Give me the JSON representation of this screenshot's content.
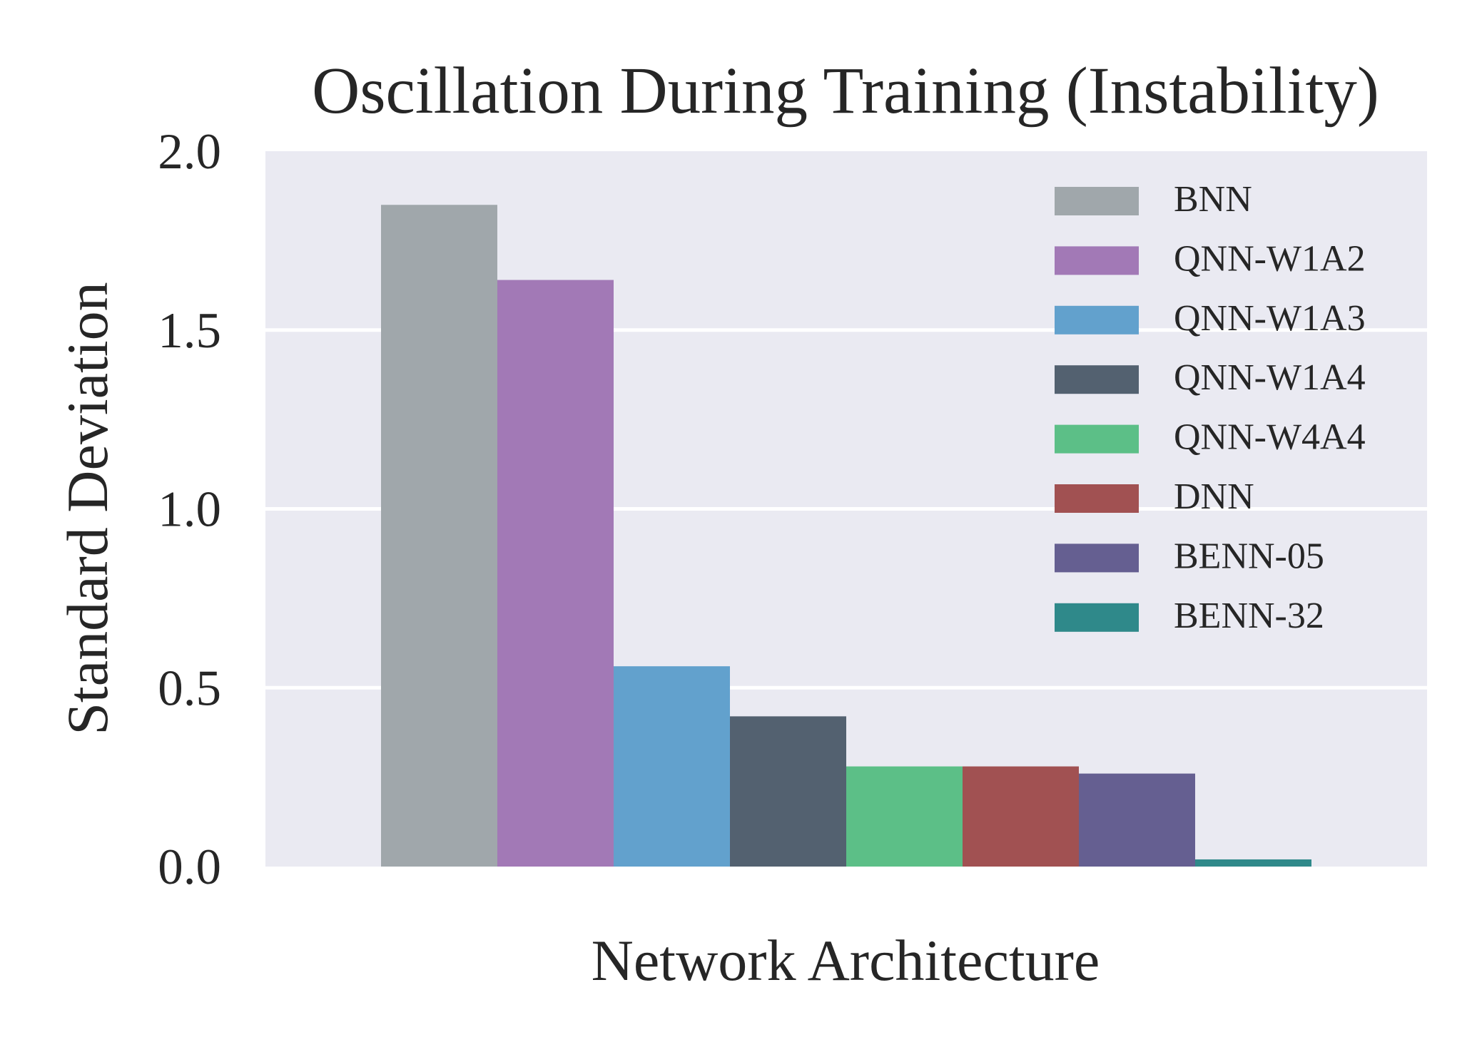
{
  "chart_data": {
    "type": "bar",
    "title": "Oscillation During Training (Instability)",
    "xlabel": "Network Architecture",
    "ylabel": "Standard Deviation",
    "ylim": [
      0,
      2.0
    ],
    "yticks": [
      "0.0",
      "0.5",
      "1.0",
      "1.5",
      "2.0"
    ],
    "grid": true,
    "legend_position": "top-right",
    "series": [
      {
        "name": "BNN",
        "value": 1.85,
        "color": "#a0a7ab"
      },
      {
        "name": "QNN-W1A2",
        "value": 1.64,
        "color": "#a279b6"
      },
      {
        "name": "QNN-W1A3",
        "value": 0.56,
        "color": "#62a1cd"
      },
      {
        "name": "QNN-W1A4",
        "value": 0.42,
        "color": "#536170"
      },
      {
        "name": "QNN-W4A4",
        "value": 0.28,
        "color": "#5cbf87"
      },
      {
        "name": "DNN",
        "value": 0.28,
        "color": "#a15152"
      },
      {
        "name": "BENN-05",
        "value": 0.26,
        "color": "#655f91"
      },
      {
        "name": "BENN-32",
        "value": 0.02,
        "color": "#2f898a"
      }
    ],
    "colors": {
      "plot_background": "#eaeaf2",
      "grid": "#ffffff",
      "text": "#262626"
    }
  }
}
